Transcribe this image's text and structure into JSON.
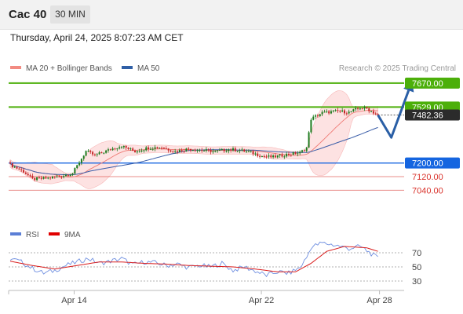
{
  "header": {
    "instrument": "Cac 40",
    "timeframe": "30 MIN",
    "datetime": "Thursday, April 24, 2025 8:07:23 AM CET"
  },
  "legend": {
    "items": [
      {
        "label": "MA 20 + Bollinger Bands",
        "color": "#f28b82"
      },
      {
        "label": "MA 50",
        "color": "#2f5fa6"
      }
    ],
    "credit": "Research © 2025 Trading Central"
  },
  "rsi_legend": {
    "items": [
      {
        "label": "RSI",
        "color": "#5b7fd6"
      },
      {
        "label": "9MA",
        "color": "#e00000"
      }
    ]
  },
  "colors": {
    "green_level": "#4caf0a",
    "blue_level": "#1565e0",
    "red_level": "#d9322b",
    "pivot_line": "#555555",
    "arrow": "#2a5fa6",
    "band_fill": "#fde2e2",
    "candle_up": "#1e7b1e",
    "candle_down": "#c62828"
  },
  "chart_data": {
    "type": "candlestick",
    "price_axis": {
      "min": 6880,
      "max": 7720
    },
    "levels": [
      {
        "value": 7670,
        "label": "7670.00",
        "kind": "resistance-2",
        "color": "#4caf0a"
      },
      {
        "value": 7529,
        "label": "7529.00",
        "kind": "resistance-1",
        "color": "#4caf0a"
      },
      {
        "value": 7482.36,
        "label": "7482.36",
        "kind": "last-price",
        "color": "#333333"
      },
      {
        "value": 7200,
        "label": "7200.00",
        "kind": "pivot",
        "color": "#1565e0"
      },
      {
        "value": 7120,
        "label": "7120.00",
        "kind": "support-1",
        "color": "#d9322b"
      },
      {
        "value": 7040,
        "label": "7040.00",
        "kind": "support-2",
        "color": "#d9322b"
      }
    ],
    "scenario_path": [
      {
        "bar": 165,
        "value": 7482
      },
      {
        "bar": 171,
        "value": 7350
      },
      {
        "bar": 180,
        "value": 7670
      }
    ],
    "x_ticks": [
      {
        "bar": 28,
        "label": "Apr 14"
      },
      {
        "bar": 112,
        "label": "Apr 22"
      },
      {
        "bar": 165,
        "label": "Apr 28"
      }
    ],
    "anchors": [
      [
        0,
        7190
      ],
      [
        6,
        7150
      ],
      [
        10,
        7105
      ],
      [
        16,
        7110
      ],
      [
        22,
        7120
      ],
      [
        28,
        7140
      ],
      [
        34,
        7270
      ],
      [
        38,
        7245
      ],
      [
        46,
        7285
      ],
      [
        50,
        7300
      ],
      [
        56,
        7268
      ],
      [
        62,
        7290
      ],
      [
        68,
        7292
      ],
      [
        74,
        7268
      ],
      [
        80,
        7283
      ],
      [
        86,
        7275
      ],
      [
        92,
        7268
      ],
      [
        98,
        7280
      ],
      [
        103,
        7275
      ],
      [
        108,
        7262
      ],
      [
        113,
        7240
      ],
      [
        118,
        7235
      ],
      [
        124,
        7250
      ],
      [
        130,
        7260
      ],
      [
        133,
        7290
      ],
      [
        135,
        7460
      ],
      [
        140,
        7495
      ],
      [
        147,
        7505
      ],
      [
        152,
        7498
      ],
      [
        157,
        7525
      ],
      [
        160,
        7520
      ],
      [
        165,
        7482
      ]
    ],
    "rsi": {
      "range": [
        0,
        100
      ],
      "levels": [
        70,
        50,
        30
      ],
      "rsi_anchors": [
        [
          0,
          62
        ],
        [
          5,
          57
        ],
        [
          10,
          48
        ],
        [
          15,
          41
        ],
        [
          20,
          45
        ],
        [
          25,
          52
        ],
        [
          30,
          57
        ],
        [
          35,
          62
        ],
        [
          40,
          55
        ],
        [
          45,
          58
        ],
        [
          50,
          62
        ],
        [
          55,
          53
        ],
        [
          60,
          57
        ],
        [
          65,
          56
        ],
        [
          70,
          52
        ],
        [
          75,
          54
        ],
        [
          80,
          49
        ],
        [
          85,
          52
        ],
        [
          90,
          50
        ],
        [
          95,
          55
        ],
        [
          100,
          45
        ],
        [
          105,
          50
        ],
        [
          110,
          44
        ],
        [
          115,
          38
        ],
        [
          120,
          43
        ],
        [
          125,
          41
        ],
        [
          130,
          49
        ],
        [
          133,
          63
        ],
        [
          135,
          78
        ],
        [
          140,
          84
        ],
        [
          147,
          80
        ],
        [
          152,
          76
        ],
        [
          157,
          79
        ],
        [
          160,
          73
        ],
        [
          165,
          62
        ]
      ],
      "ma_anchors": [
        [
          0,
          58
        ],
        [
          10,
          52
        ],
        [
          20,
          47
        ],
        [
          30,
          52
        ],
        [
          40,
          57
        ],
        [
          50,
          57
        ],
        [
          60,
          55
        ],
        [
          70,
          54
        ],
        [
          80,
          52
        ],
        [
          90,
          51
        ],
        [
          100,
          50
        ],
        [
          110,
          47
        ],
        [
          120,
          43
        ],
        [
          128,
          43
        ],
        [
          135,
          55
        ],
        [
          142,
          72
        ],
        [
          150,
          79
        ],
        [
          160,
          77
        ],
        [
          165,
          72
        ]
      ]
    }
  }
}
